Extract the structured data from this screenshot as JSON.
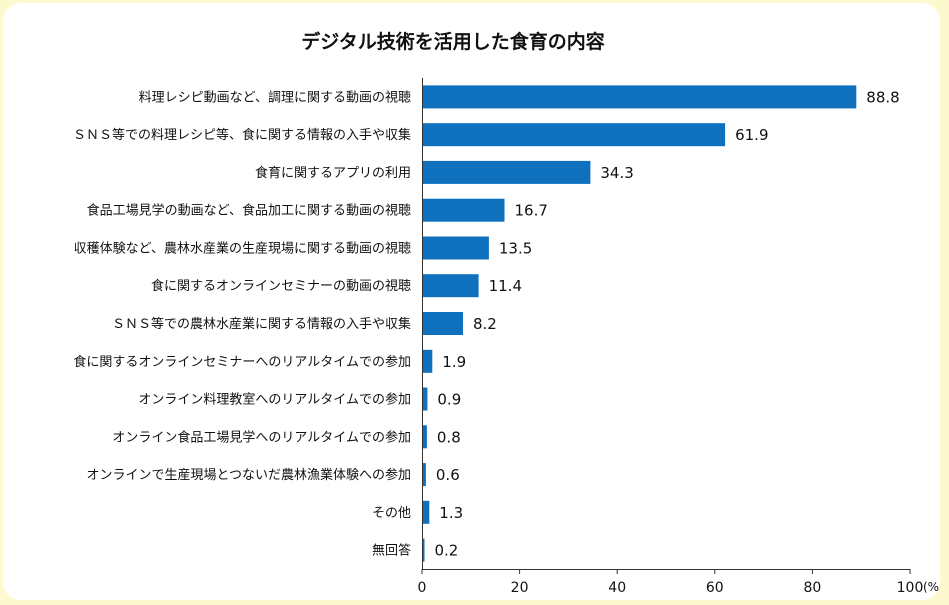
{
  "chart_data": {
    "type": "bar",
    "orientation": "horizontal",
    "title": "デジタル技術を活用した食育の内容",
    "categories": [
      "料理レシピ動画など、調理に関する動画の視聴",
      "ＳＮＳ等での料理レシピ等、食に関する情報の入手や収集",
      "食育に関するアプリの利用",
      "食品工場見学の動画など、食品加工に関する動画の視聴",
      "収穫体験など、農林水産業の生産現場に関する動画の視聴",
      "食に関するオンラインセミナーの動画の視聴",
      "ＳＮＳ等での農林水産業に関する情報の入手や収集",
      "食に関するオンラインセミナーへのリアルタイムでの参加",
      "オンライン料理教室へのリアルタイムでの参加",
      "オンライン食品工場見学へのリアルタイムでの参加",
      "オンラインで生産現場とつないだ農林漁業体験への参加",
      "その他",
      "無回答"
    ],
    "values": [
      88.8,
      61.9,
      34.3,
      16.7,
      13.5,
      11.4,
      8.2,
      1.9,
      0.9,
      0.8,
      0.6,
      1.3,
      0.2
    ],
    "value_labels": [
      "88.8",
      "61.9",
      "34.3",
      "16.7",
      "13.5",
      "11.4",
      "8.2",
      "1.9",
      "0.9",
      "0.8",
      "0.6",
      "1.3",
      "0.2"
    ],
    "xlim": [
      0,
      100
    ],
    "xticks": [
      "0",
      "20",
      "40",
      "60",
      "80",
      "100"
    ],
    "xunit": "(%)",
    "bar_color": "#0f70be",
    "grid": false
  }
}
